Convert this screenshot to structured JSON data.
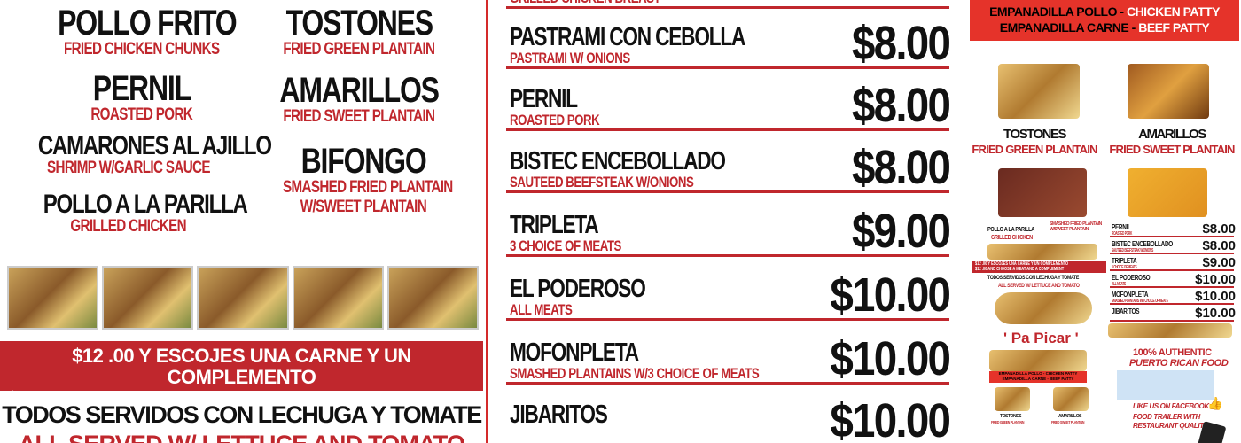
{
  "left": {
    "items": [
      {
        "name": "POLLO FRITO",
        "desc": "FRIED CHICKEN CHUNKS"
      },
      {
        "name": "TOSTONES",
        "desc": "FRIED GREEN PLANTAIN"
      },
      {
        "name": "PERNIL",
        "desc": "ROASTED PORK"
      },
      {
        "name": "AMARILLOS",
        "desc": "FRIED SWEET PLANTAIN"
      },
      {
        "name": "CAMARONES AL AJILLO",
        "desc": "SHRIMP W/GARLIC SAUCE"
      },
      {
        "name": "BIFONGO",
        "desc": "SMASHED  FRIED  PLANTAIN",
        "desc2": "W/SWEET  PLANTAIN"
      },
      {
        "name": "POLLO A LA PARILLA",
        "desc": "GRILLED  CHICKEN"
      }
    ],
    "banner_line1": "$12 .00  Y ESCOJES UNA CARNE Y UN COMPLEMENTO",
    "banner_line2": "$12 .00  AND CHOOSE A MEAT AND A COMPLEMENT",
    "served_es": "TODOS SERVIDOS CON  LECHUGA Y TOMATE",
    "served_en": "ALL SERVED  W/ LETTUCE  AND TOMATO"
  },
  "middle": {
    "partial_top": "GRILLED CHICKEN BREAST",
    "rows": [
      {
        "name": "PASTRAMI CON CEBOLLA",
        "desc": "PASTRAMI  W/ ONIONS",
        "price": "$8.00"
      },
      {
        "name": "PERNIL",
        "desc": "ROASTED PORK",
        "price": "$8.00"
      },
      {
        "name": "BISTEC ENCEBOLLADO",
        "desc": "SAUTEED BEEFSTEAK W/ONIONS",
        "price": "$8.00"
      },
      {
        "name": "TRIPLETA",
        "desc": "3 CHOICE OF MEATS",
        "price": "$9.00"
      },
      {
        "name": "EL PODEROSO",
        "desc": "ALL MEATS",
        "price": "$10.00"
      },
      {
        "name": "MOFONPLETA",
        "desc": "SMASHED PLANTAINS W/3 CHOICE OF MEATS",
        "price": "$10.00"
      },
      {
        "name": "JIBARITOS",
        "desc": "",
        "price": "$10.00"
      }
    ]
  },
  "right": {
    "top_banner": [
      {
        "es": "EMPANADILLA POLLO",
        "en": "CHICKEN PATTY"
      },
      {
        "es": "EMPANADILLA CARNE",
        "en": "BEEF PATTY"
      }
    ],
    "sides": [
      {
        "name": "TOSTONES",
        "desc": "FRIED GREEN PLANTAIN"
      },
      {
        "name": "AMARILLOS",
        "desc": "FRIED SWEET PLANTAIN"
      }
    ],
    "mini_left": {
      "item1": "POLLO A LA PARILLA",
      "item1_desc": "GRILLED CHICKEN",
      "item2_desc": "SMASHED FRIED PLANTAIN W/SWEET PLANTAIN",
      "banner": "$12 .00  Y ESCOJES UNA CARNE Y UN COMPLEMENTO",
      "banner2": "$12 .00  AND CHOOSE A MEAT AND A COMPLEMENT",
      "served_es": "TODOS SERVIDOS CON  LECHUGA Y TOMATE",
      "served_en": "ALL SERVED  W/ LETTUCE  AND TOMATO",
      "pa_picar": "' Pa Picar '",
      "patty": "EMPANADILLA POLLO - CHICKEN PATTY",
      "patty2": "EMPANADILLA CARNE - BEEF PATTY",
      "tostones": "TOSTONES",
      "tostones_desc": "FRIED GREEN PLANTAIN",
      "amarillos": "AMARILLOS",
      "amarillos_desc": "FRIED SWEET PLANTAIN"
    },
    "mini_prices": [
      {
        "name": "PERNIL",
        "desc": "ROASTED PORK",
        "price": "$8.00"
      },
      {
        "name": "BISTEC ENCEBOLLADO",
        "desc": "SAUTEED BEEFSTEAK W/ONIONS",
        "price": "$8.00"
      },
      {
        "name": "TRIPLETA",
        "desc": "3 CHOICE OF MEATS",
        "price": "$9.00"
      },
      {
        "name": "EL PODEROSO",
        "desc": "ALL MEATS",
        "price": "$10.00"
      },
      {
        "name": "MOFONPLETA",
        "desc": "SMASHED PLANTAINS W/3 CHOICE OF MEATS",
        "price": "$10.00"
      },
      {
        "name": "JIBARITOS",
        "desc": "",
        "price": "$10.00"
      }
    ],
    "authentic1": "100% AUTHENTIC",
    "authentic2": "PUERTO RICAN FOOD",
    "facebook": "LIKE US ON FACEBOOK",
    "trailer1": "FOOD TRAILER WITH",
    "trailer2": "RESTAURANT QUALITY"
  },
  "colors": {
    "red": "#c0272d",
    "banner_red": "#e5332a",
    "text": "#111111"
  }
}
